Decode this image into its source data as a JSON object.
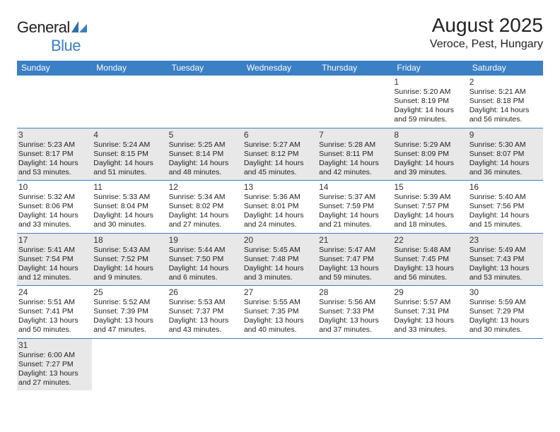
{
  "logo": {
    "part1": "General",
    "part2": "Blue"
  },
  "title": "August 2025",
  "location": "Veroce, Pest, Hungary",
  "colors": {
    "header_bg": "#3b7fc4",
    "header_text": "#ffffff",
    "rule": "#3b7fc4",
    "even_week_bg": "#e8e8e8",
    "odd_week_bg": "#ffffff",
    "text": "#222222"
  },
  "days_of_week": [
    "Sunday",
    "Monday",
    "Tuesday",
    "Wednesday",
    "Thursday",
    "Friday",
    "Saturday"
  ],
  "first_weekday_index": 5,
  "days": [
    {
      "n": 1,
      "rise": "5:20 AM",
      "set": "8:19 PM",
      "dl": "14 hours and 59 minutes."
    },
    {
      "n": 2,
      "rise": "5:21 AM",
      "set": "8:18 PM",
      "dl": "14 hours and 56 minutes."
    },
    {
      "n": 3,
      "rise": "5:23 AM",
      "set": "8:17 PM",
      "dl": "14 hours and 53 minutes."
    },
    {
      "n": 4,
      "rise": "5:24 AM",
      "set": "8:15 PM",
      "dl": "14 hours and 51 minutes."
    },
    {
      "n": 5,
      "rise": "5:25 AM",
      "set": "8:14 PM",
      "dl": "14 hours and 48 minutes."
    },
    {
      "n": 6,
      "rise": "5:27 AM",
      "set": "8:12 PM",
      "dl": "14 hours and 45 minutes."
    },
    {
      "n": 7,
      "rise": "5:28 AM",
      "set": "8:11 PM",
      "dl": "14 hours and 42 minutes."
    },
    {
      "n": 8,
      "rise": "5:29 AM",
      "set": "8:09 PM",
      "dl": "14 hours and 39 minutes."
    },
    {
      "n": 9,
      "rise": "5:30 AM",
      "set": "8:07 PM",
      "dl": "14 hours and 36 minutes."
    },
    {
      "n": 10,
      "rise": "5:32 AM",
      "set": "8:06 PM",
      "dl": "14 hours and 33 minutes."
    },
    {
      "n": 11,
      "rise": "5:33 AM",
      "set": "8:04 PM",
      "dl": "14 hours and 30 minutes."
    },
    {
      "n": 12,
      "rise": "5:34 AM",
      "set": "8:02 PM",
      "dl": "14 hours and 27 minutes."
    },
    {
      "n": 13,
      "rise": "5:36 AM",
      "set": "8:01 PM",
      "dl": "14 hours and 24 minutes."
    },
    {
      "n": 14,
      "rise": "5:37 AM",
      "set": "7:59 PM",
      "dl": "14 hours and 21 minutes."
    },
    {
      "n": 15,
      "rise": "5:39 AM",
      "set": "7:57 PM",
      "dl": "14 hours and 18 minutes."
    },
    {
      "n": 16,
      "rise": "5:40 AM",
      "set": "7:56 PM",
      "dl": "14 hours and 15 minutes."
    },
    {
      "n": 17,
      "rise": "5:41 AM",
      "set": "7:54 PM",
      "dl": "14 hours and 12 minutes."
    },
    {
      "n": 18,
      "rise": "5:43 AM",
      "set": "7:52 PM",
      "dl": "14 hours and 9 minutes."
    },
    {
      "n": 19,
      "rise": "5:44 AM",
      "set": "7:50 PM",
      "dl": "14 hours and 6 minutes."
    },
    {
      "n": 20,
      "rise": "5:45 AM",
      "set": "7:48 PM",
      "dl": "14 hours and 3 minutes."
    },
    {
      "n": 21,
      "rise": "5:47 AM",
      "set": "7:47 PM",
      "dl": "13 hours and 59 minutes."
    },
    {
      "n": 22,
      "rise": "5:48 AM",
      "set": "7:45 PM",
      "dl": "13 hours and 56 minutes."
    },
    {
      "n": 23,
      "rise": "5:49 AM",
      "set": "7:43 PM",
      "dl": "13 hours and 53 minutes."
    },
    {
      "n": 24,
      "rise": "5:51 AM",
      "set": "7:41 PM",
      "dl": "13 hours and 50 minutes."
    },
    {
      "n": 25,
      "rise": "5:52 AM",
      "set": "7:39 PM",
      "dl": "13 hours and 47 minutes."
    },
    {
      "n": 26,
      "rise": "5:53 AM",
      "set": "7:37 PM",
      "dl": "13 hours and 43 minutes."
    },
    {
      "n": 27,
      "rise": "5:55 AM",
      "set": "7:35 PM",
      "dl": "13 hours and 40 minutes."
    },
    {
      "n": 28,
      "rise": "5:56 AM",
      "set": "7:33 PM",
      "dl": "13 hours and 37 minutes."
    },
    {
      "n": 29,
      "rise": "5:57 AM",
      "set": "7:31 PM",
      "dl": "13 hours and 33 minutes."
    },
    {
      "n": 30,
      "rise": "5:59 AM",
      "set": "7:29 PM",
      "dl": "13 hours and 30 minutes."
    },
    {
      "n": 31,
      "rise": "6:00 AM",
      "set": "7:27 PM",
      "dl": "13 hours and 27 minutes."
    }
  ],
  "labels": {
    "sunrise": "Sunrise:",
    "sunset": "Sunset:",
    "daylight": "Daylight:"
  }
}
